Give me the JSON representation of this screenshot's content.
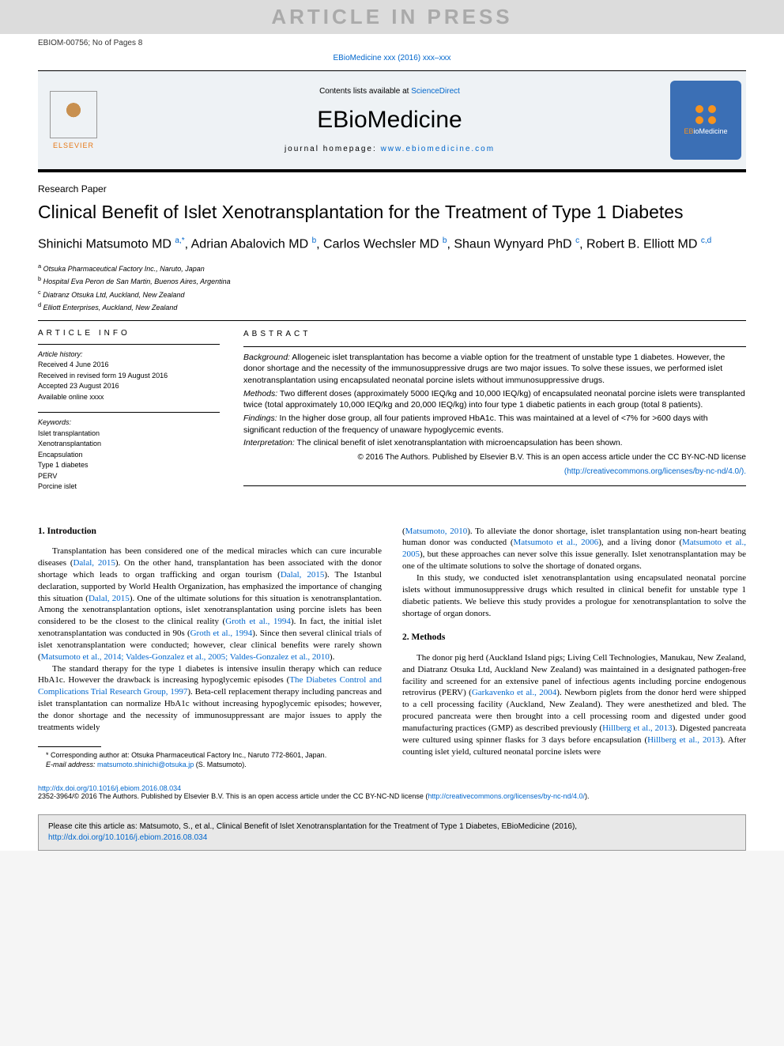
{
  "banner": {
    "text": "ARTICLE IN PRESS"
  },
  "header": {
    "article_id": "EBIOM-00756; No of Pages 8",
    "journal_ref_prefix": "EBioMedicine xxx (2016) xxx–xxx",
    "contents_prefix": "Contents lists available at ",
    "contents_link": "ScienceDirect",
    "journal_name": "EBioMedicine",
    "homepage_prefix": "journal homepage: ",
    "homepage_url": "www.ebiomedicine.com",
    "elsevier_label": "ELSEVIER",
    "badge_label_e": "EB",
    "badge_label_rest": "ioMedicine"
  },
  "article": {
    "type": "Research Paper",
    "title": "Clinical Benefit of Islet Xenotransplantation for the Treatment of Type 1 Diabetes",
    "authors_html": "Shinichi Matsumoto MD <sup>a,*</sup>, Adrian Abalovich MD <sup>b</sup>, Carlos Wechsler MD <sup>b</sup>, Shaun Wynyard PhD <sup>c</sup>, Robert B. Elliott MD <sup>c,d</sup>",
    "affiliations": [
      "a  Otsuka Pharmaceutical Factory Inc., Naruto, Japan",
      "b  Hospital Eva Peron de San Martin, Buenos Aires, Argentina",
      "c  Diatranz Otsuka Ltd, Auckland, New Zealand",
      "d  Elliott Enterprises, Auckland, New Zealand"
    ]
  },
  "info": {
    "heading": "article info",
    "history_label": "Article history:",
    "history": [
      "Received 4 June 2016",
      "Received in revised form 19 August 2016",
      "Accepted 23 August 2016",
      "Available online xxxx"
    ],
    "keywords_label": "Keywords:",
    "keywords": [
      "Islet transplantation",
      "Xenotransplantation",
      "Encapsulation",
      "Type 1 diabetes",
      "PERV",
      "Porcine islet"
    ]
  },
  "abstract": {
    "heading": "abstract",
    "background_label": "Background:",
    "background": " Allogeneic islet transplantation has become a viable option for the treatment of unstable type 1 diabetes. However, the donor shortage and the necessity of the immunosuppressive drugs are two major issues. To solve these issues, we performed islet xenotransplantation using encapsulated neonatal porcine islets without immunosuppressive drugs.",
    "methods_label": "Methods:",
    "methods": " Two different doses (approximately 5000 IEQ/kg and 10,000 IEQ/kg) of encapsulated neonatal porcine islets were transplanted twice (total approximately 10,000 IEQ/kg and 20,000 IEQ/kg) into four type 1 diabetic patients in each group (total 8 patients).",
    "findings_label": "Findings:",
    "findings": " In the higher dose group, all four patients improved HbA1c. This was maintained at a level of <7% for >600 days with significant reduction of the frequency of unaware hypoglycemic events.",
    "interpretation_label": "Interpretation:",
    "interpretation": " The clinical benefit of islet xenotransplantation with microencapsulation has been shown.",
    "copyright": "© 2016 The Authors. Published by Elsevier B.V. This is an open access article under the CC BY-NC-ND license",
    "copyright_link": "(http://creativecommons.org/licenses/by-nc-nd/4.0/)."
  },
  "body": {
    "intro_heading": "1. Introduction",
    "intro_p1a": "Transplantation has been considered one of the medical miracles which can cure incurable diseases (",
    "intro_p1_ref1": "Dalal, 2015",
    "intro_p1b": "). On the other hand, transplantation has been associated with the donor shortage which leads to organ trafficking and organ tourism (",
    "intro_p1_ref2": "Dalal, 2015",
    "intro_p1c": "). The Istanbul declaration, supported by World Health Organization, has emphasized the importance of changing this situation (",
    "intro_p1_ref3": "Dalal, 2015",
    "intro_p1d": "). One of the ultimate solutions for this situation is xenotransplantation. Among the xenotransplantation options, islet xenotransplantation using porcine islets has been considered to be the closest to the clinical reality (",
    "intro_p1_ref4": "Groth et al., 1994",
    "intro_p1e": "). In fact, the initial islet xenotransplantation was conducted in 90s (",
    "intro_p1_ref5": "Groth et al., 1994",
    "intro_p1f": "). Since then several clinical trials of islet xenotransplantation were conducted; however, clear clinical benefits were rarely shown (",
    "intro_p1_ref6": "Matsumoto et al., 2014; Valdes-Gonzalez et al., 2005; Valdes-Gonzalez et al., 2010",
    "intro_p1g": ").",
    "intro_p2a": "The standard therapy for the type 1 diabetes is intensive insulin therapy which can reduce HbA1c. However the drawback is increasing hypoglycemic episodes (",
    "intro_p2_ref1": "The Diabetes Control and Complications Trial Research Group, 1997",
    "intro_p2b": "). Beta-cell replacement therapy including pancreas and islet transplantation can normalize HbA1c without increasing hypoglycemic episodes; however, the donor shortage and the necessity of immunosuppressant are major issues to apply the treatments widely",
    "col2_p1a": "(",
    "col2_p1_ref1": "Matsumoto, 2010",
    "col2_p1b": "). To alleviate the donor shortage, islet transplantation using non-heart beating human donor was conducted (",
    "col2_p1_ref2": "Matsumoto et al., 2006",
    "col2_p1c": "), and a living donor (",
    "col2_p1_ref3": "Matsumoto et al., 2005",
    "col2_p1d": "), but these approaches can never solve this issue generally. Islet xenotransplantation may be one of the ultimate solutions to solve the shortage of donated organs.",
    "col2_p2": "In this study, we conducted islet xenotransplantation using encapsulated neonatal porcine islets without immunosuppressive drugs which resulted in clinical benefit for unstable type 1 diabetic patients. We believe this study provides a prologue for xenotransplantation to solve the shortage of organ donors.",
    "methods_heading": "2. Methods",
    "methods_p1a": "The donor pig herd (Auckland Island pigs; Living Cell Technologies, Manukau, New Zealand, and Diatranz Otsuka Ltd, Auckland New Zealand) was maintained in a designated pathogen-free facility and screened for an extensive panel of infectious agents including porcine endogenous retrovirus (PERV) (",
    "methods_p1_ref1": "Garkavenko et al., 2004",
    "methods_p1b": "). Newborn piglets from the donor herd were shipped to a cell processing facility (Auckland, New Zealand). They were anesthetized and bled. The procured pancreata were then brought into a cell processing room and digested under good manufacturing practices (GMP) as described previously (",
    "methods_p1_ref2": "Hillberg et al., 2013",
    "methods_p1c": "). Digested pancreata were cultured using spinner flasks for 3 days before encapsulation (",
    "methods_p1_ref3": "Hillberg et al., 2013",
    "methods_p1d": "). After counting islet yield, cultured neonatal porcine islets were"
  },
  "footnote": {
    "corr_label": "* Corresponding author at: Otsuka Pharmaceutical Factory Inc., Naruto 772-8601, Japan.",
    "email_label": "E-mail address: ",
    "email": "matsumoto.shinichi@otsuka.jp",
    "email_suffix": " (S. Matsumoto)."
  },
  "footer": {
    "doi": "http://dx.doi.org/10.1016/j.ebiom.2016.08.034",
    "issn_line": "2352-3964/© 2016 The Authors. Published by Elsevier B.V. This is an open access article under the CC BY-NC-ND license (",
    "license_url": "http://creativecommons.org/licenses/by-nc-nd/4.0/",
    "issn_suffix": ")."
  },
  "citebox": {
    "text": "Please cite this article as: Matsumoto, S., et al., Clinical Benefit of Islet Xenotransplantation for the Treatment of Type 1 Diabetes, EBioMedicine (2016), ",
    "link": "http://dx.doi.org/10.1016/j.ebiom.2016.08.034"
  },
  "colors": {
    "link": "#0066cc",
    "banner_bg": "#dcdcdc",
    "banner_fg": "#aaaaaa",
    "badge_bg": "#3b6fb5",
    "badge_accent": "#f7931e",
    "masthead_bg": "#eef2f5",
    "citebox_bg": "#e8e8e8"
  }
}
